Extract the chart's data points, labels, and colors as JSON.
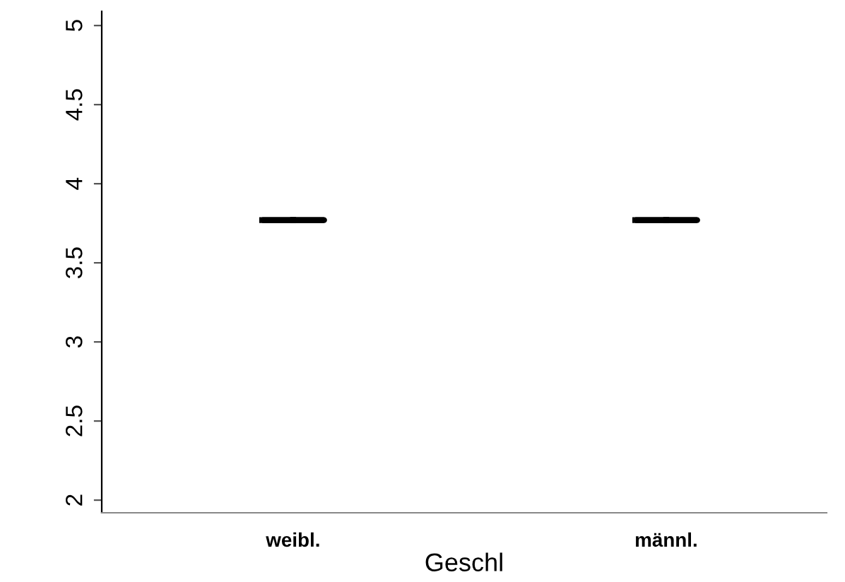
{
  "chart_data": {
    "type": "box",
    "xlabel": "Geschl",
    "categories": [
      "weibl.",
      "männl."
    ],
    "boxes": [
      {
        "low": 3.77,
        "q1": 3.77,
        "median": 3.77,
        "q3": 3.77,
        "high": 3.77
      },
      {
        "low": 3.77,
        "q1": 3.77,
        "median": 3.77,
        "q3": 3.77,
        "high": 3.77
      }
    ],
    "color": "#000000",
    "ylim": [
      1.92,
      5.09
    ],
    "yticks": [
      2,
      2.5,
      3,
      3.5,
      4,
      4.5,
      5
    ],
    "grid": false,
    "legend": false
  }
}
